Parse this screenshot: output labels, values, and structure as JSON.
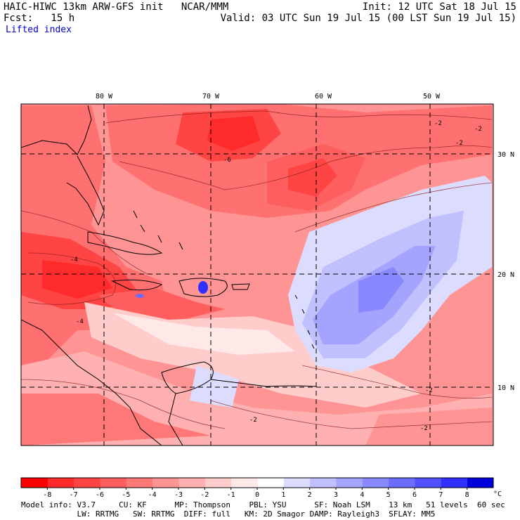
{
  "header": {
    "model_line": "HAIC-HIWC 13km ARW-GFS init   NCAR/MMM",
    "forecast_line": "Fcst:   15 h",
    "field_name": "Lifted index",
    "init_line": "Init: 12 UTC Sat 18 Jul 15",
    "valid_line": "Valid: 03 UTC Sun 19 Jul 15 (00 LST Sun 19 Jul 15)"
  },
  "map": {
    "longitude_labels": [
      "80 W",
      "70 W",
      "60 W",
      "50 W"
    ],
    "latitude_labels": [
      "30 N",
      "20 N",
      "10 N"
    ],
    "contour_labels": [
      "-2",
      "-2",
      "-2",
      "-4",
      "-6",
      "-4",
      "-2",
      "-2",
      "-2"
    ]
  },
  "colorbar": {
    "tick_labels": [
      "-8",
      "-7",
      "-6",
      "-5",
      "-4",
      "-3",
      "-2",
      "-1",
      "0",
      "1",
      "2",
      "3",
      "4",
      "5",
      "6",
      "7",
      "8"
    ],
    "unit": "°C",
    "colors": [
      "#ff0000",
      "#ff2a2a",
      "#ff4444",
      "#ff5e5e",
      "#ff7878",
      "#ff9494",
      "#ffb0b0",
      "#ffcccc",
      "#ffe8e8",
      "#ffffff",
      "#dcdcff",
      "#c0c0ff",
      "#a4a4ff",
      "#8888ff",
      "#6c6cff",
      "#5050ff",
      "#3030ff",
      "#0000dd"
    ]
  },
  "footer": {
    "line1": "Model info: V3.7     CU: KF      MP: Thompson    PBL: YSU      SF: Noah LSM    13 km   51 levels  60 sec",
    "line2": "            LW: RRTMG   SW: RRTMG  DIFF: full   KM: 2D Smagor DAMP: Rayleigh3  SFLAY: MM5"
  }
}
